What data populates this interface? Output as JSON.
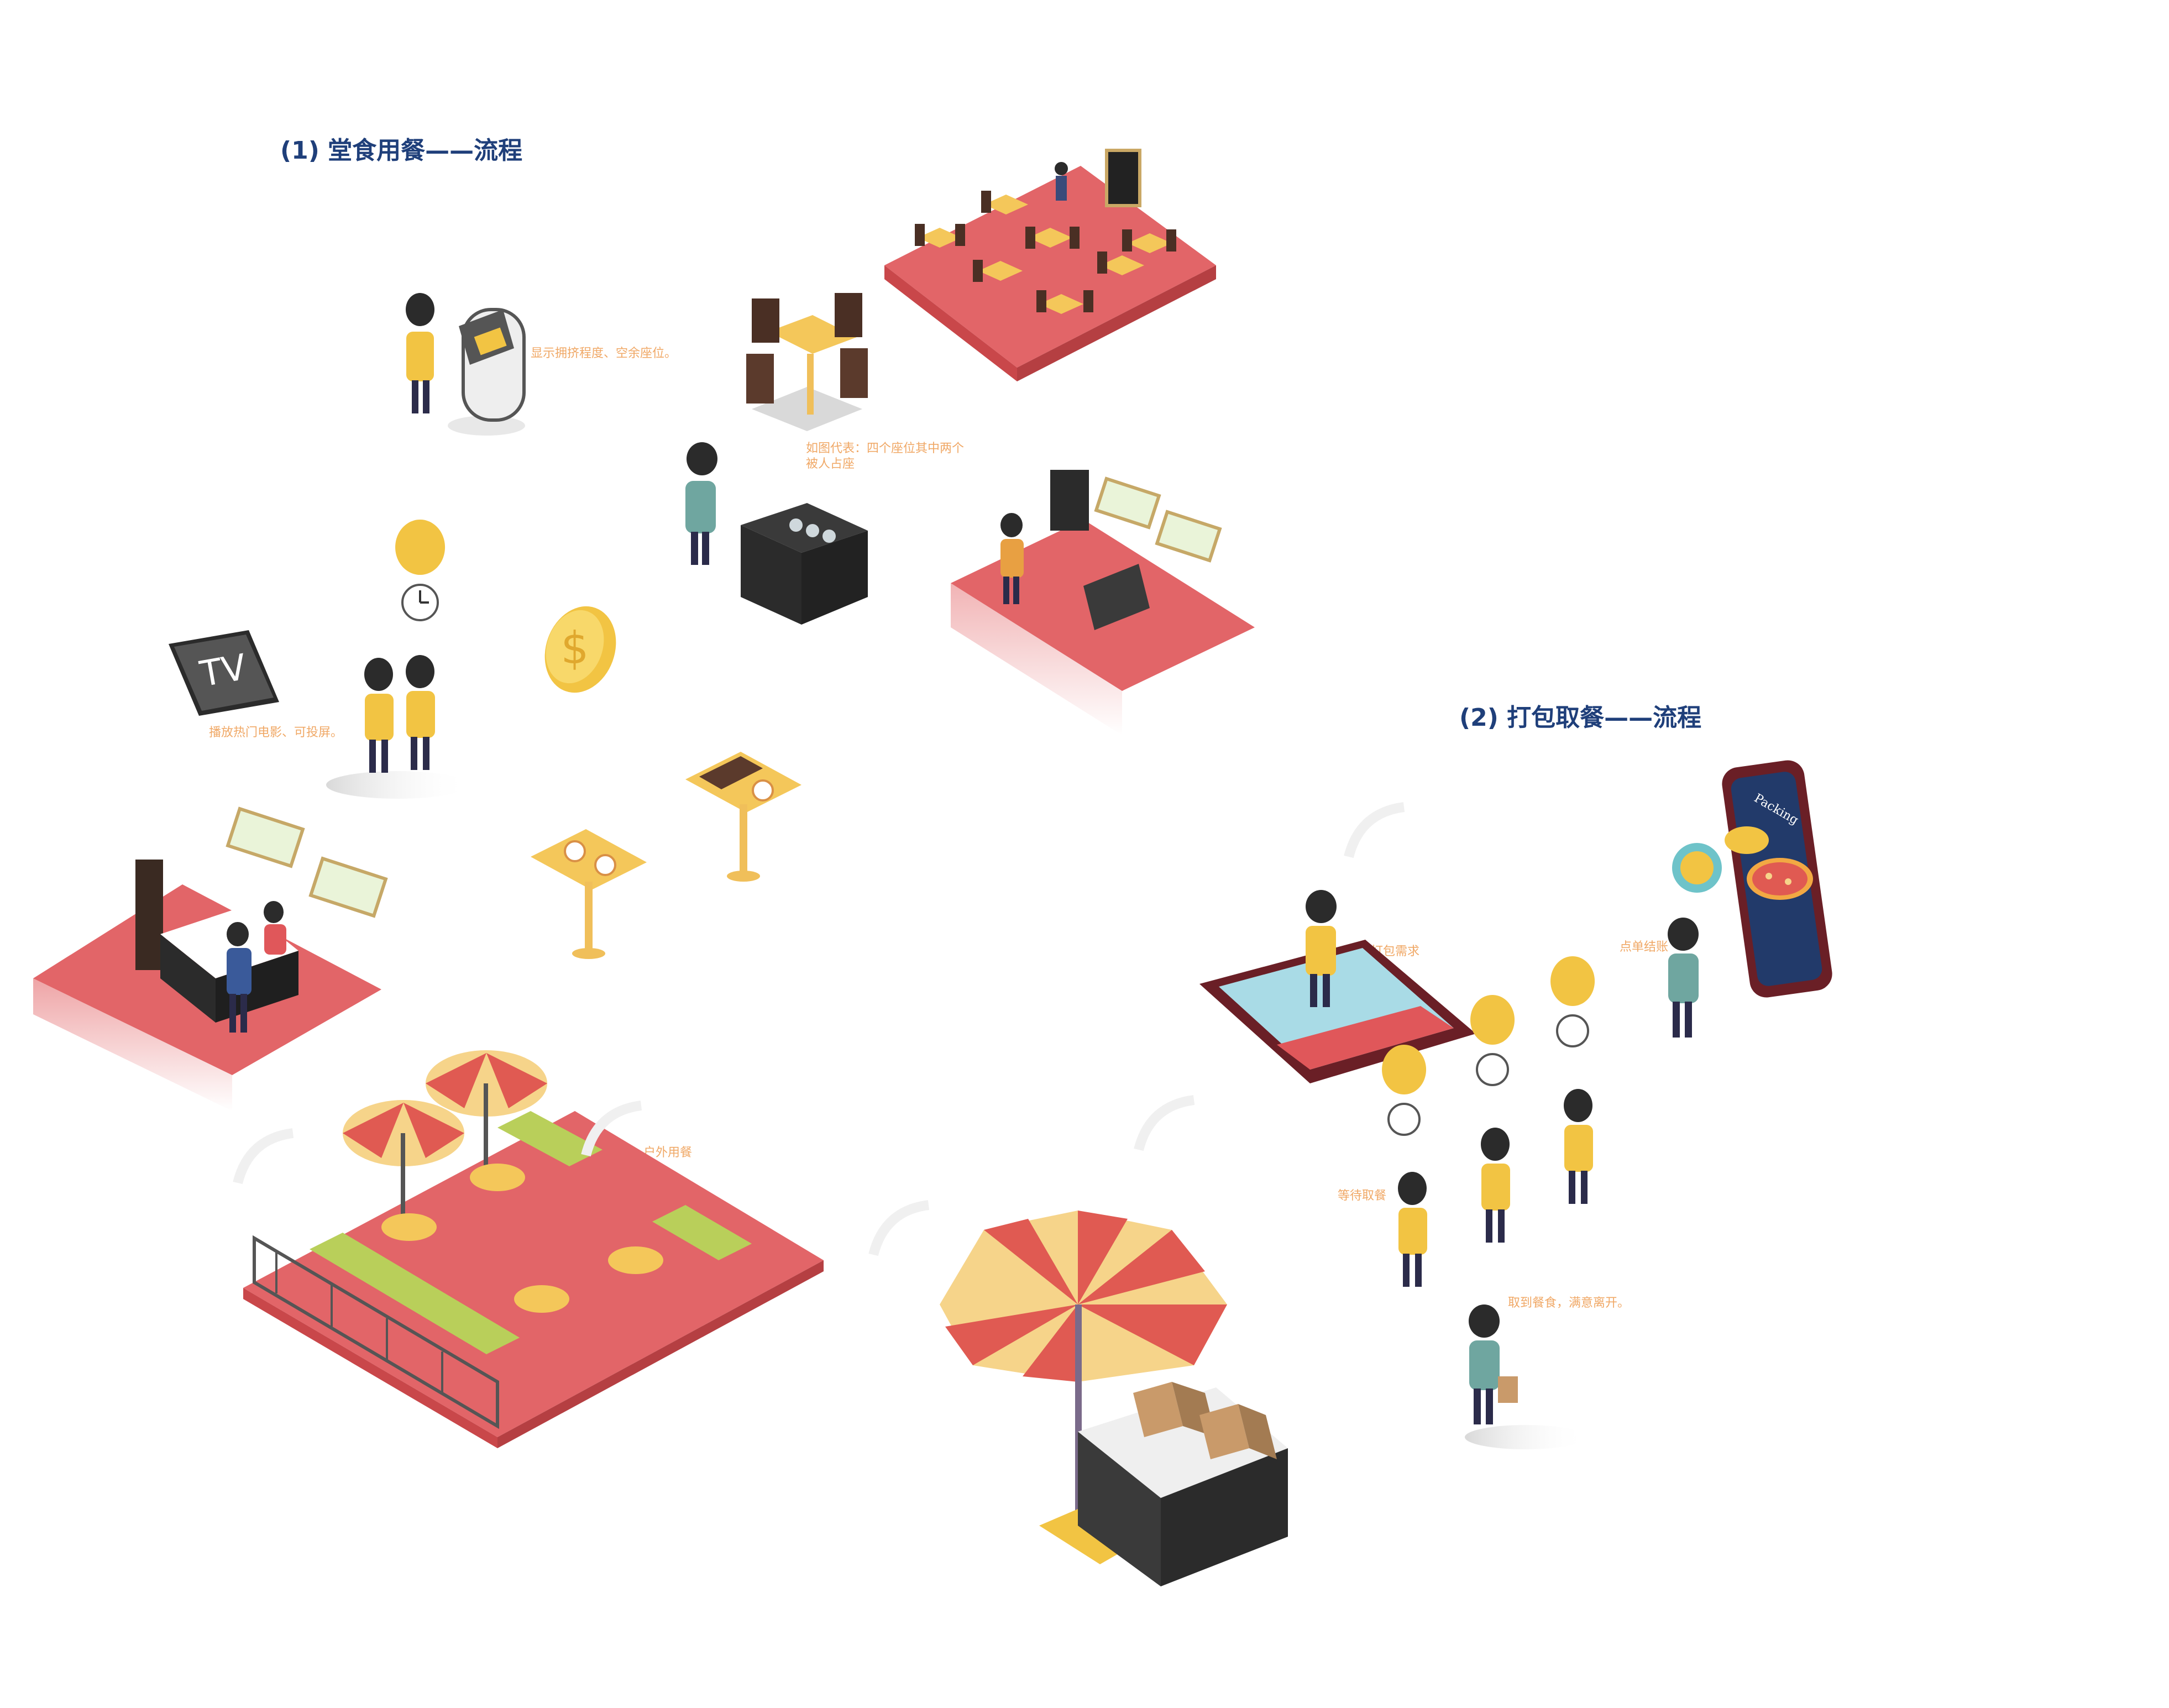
{
  "sections": {
    "dine_in_title": "(1) 堂食用餐——流程",
    "takeout_title": "(2) 打包取餐——流程"
  },
  "notes": {
    "crowd_display": "显示拥挤程度、空余座位。",
    "seat_occupancy": "如图代表：四个座位其中两个被人占座",
    "tv": "播放热门电影、可投屏。",
    "outdoor": "户外用餐",
    "need_takeout": "有打包需求",
    "order_pay": "点单结账",
    "waiting": "等待取餐",
    "leave": "取到餐食，满意离开。"
  },
  "labels": {
    "tv_screen": "TV",
    "phone_app": "Packing"
  },
  "colors": {
    "title_blue": "#1f3f7a",
    "note_orange": "#f0a866",
    "floor_red": "#e0575a",
    "umbrella_red": "#e05a52",
    "umbrella_cream": "#f6d48a",
    "shirt_yellow": "#f2c443",
    "shirt_teal": "#6fa6a0",
    "dark": "#2b2b2b"
  },
  "icons": [
    "clock-icon",
    "coin-icon",
    "tv-icon",
    "kiosk-icon",
    "umbrella-icon",
    "smartphone-icon",
    "pizza-icon",
    "paper-bag-icon"
  ]
}
